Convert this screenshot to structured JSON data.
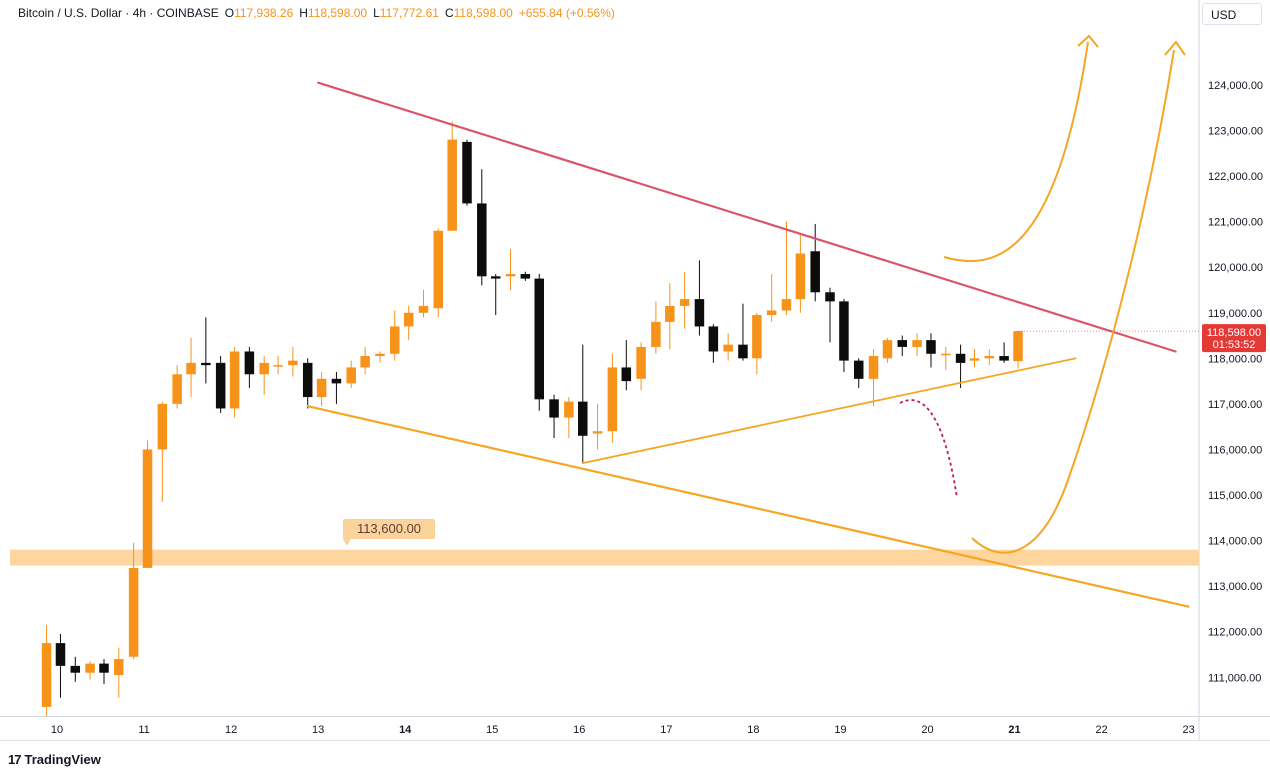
{
  "header": {
    "symbol": "Bitcoin / U.S. Dollar · 4h · COINBASE",
    "open_label": "O",
    "open": "117,938.26",
    "high_label": "H",
    "high": "118,598.00",
    "low_label": "L",
    "low": "117,772.61",
    "close_label": "C",
    "close": "118,598.00",
    "change": "+655.84 (+0.56%)"
  },
  "currency": "USD",
  "price_label": {
    "price": "118,598.00",
    "countdown": "01:53:52"
  },
  "zone_label": "113,600.00",
  "footer": {
    "brand": "TradingView",
    "logo": "17"
  },
  "colors": {
    "up": "#f7931a",
    "down": "#0c0c0c",
    "resistance": "#d9566a",
    "support": "#f5a623",
    "zone": "#fcd39a",
    "projection": "#f5a623",
    "dotted": "#c2185b",
    "price_tag": "#e53935"
  },
  "chart_data": {
    "type": "candlestick",
    "interval": "4h",
    "y_axis": {
      "ticks": [
        "111,000.00",
        "112,000.00",
        "113,000.00",
        "114,000.00",
        "115,000.00",
        "116,000.00",
        "117,000.00",
        "118,000.00",
        "119,000.00",
        "120,000.00",
        "121,000.00",
        "122,000.00",
        "123,000.00",
        "124,000.00"
      ],
      "ylim": [
        110150,
        125250
      ]
    },
    "x_axis": {
      "labels": [
        "10",
        "11",
        "12",
        "13",
        "14",
        "15",
        "16",
        "17",
        "18",
        "19",
        "20",
        "21",
        "22",
        "23"
      ],
      "bold": [
        "14",
        "21"
      ]
    },
    "candles": [
      {
        "t": 9.88,
        "o": 110350,
        "h": 112150,
        "l": 110150,
        "c": 111750
      },
      {
        "t": 10.04,
        "o": 111750,
        "h": 111950,
        "l": 110550,
        "c": 111250
      },
      {
        "t": 10.21,
        "o": 111250,
        "h": 111450,
        "l": 110900,
        "c": 111100
      },
      {
        "t": 10.38,
        "o": 111100,
        "h": 111350,
        "l": 110950,
        "c": 111300
      },
      {
        "t": 10.54,
        "o": 111300,
        "h": 111400,
        "l": 110850,
        "c": 111100
      },
      {
        "t": 10.71,
        "o": 111050,
        "h": 111650,
        "l": 110550,
        "c": 111400
      },
      {
        "t": 10.88,
        "o": 111450,
        "h": 113950,
        "l": 111400,
        "c": 113400
      },
      {
        "t": 11.04,
        "o": 113400,
        "h": 116200,
        "l": 113400,
        "c": 116000
      },
      {
        "t": 11.21,
        "o": 116000,
        "h": 117050,
        "l": 114850,
        "c": 117000
      },
      {
        "t": 11.38,
        "o": 117000,
        "h": 117850,
        "l": 116900,
        "c": 117650
      },
      {
        "t": 11.54,
        "o": 117650,
        "h": 118450,
        "l": 117150,
        "c": 117900
      },
      {
        "t": 11.71,
        "o": 117900,
        "h": 118900,
        "l": 117450,
        "c": 117850
      },
      {
        "t": 11.88,
        "o": 117900,
        "h": 118050,
        "l": 116800,
        "c": 116900
      },
      {
        "t": 12.04,
        "o": 116900,
        "h": 118250,
        "l": 116700,
        "c": 118150
      },
      {
        "t": 12.21,
        "o": 118150,
        "h": 118250,
        "l": 117350,
        "c": 117650
      },
      {
        "t": 12.38,
        "o": 117650,
        "h": 118050,
        "l": 117200,
        "c": 117900
      },
      {
        "t": 12.54,
        "o": 117850,
        "h": 118050,
        "l": 117650,
        "c": 117850
      },
      {
        "t": 12.71,
        "o": 117850,
        "h": 118250,
        "l": 117600,
        "c": 117950
      },
      {
        "t": 12.88,
        "o": 117900,
        "h": 118000,
        "l": 116900,
        "c": 117150
      },
      {
        "t": 13.04,
        "o": 117150,
        "h": 117700,
        "l": 116950,
        "c": 117550
      },
      {
        "t": 13.21,
        "o": 117550,
        "h": 117700,
        "l": 117000,
        "c": 117450
      },
      {
        "t": 13.38,
        "o": 117450,
        "h": 117950,
        "l": 117350,
        "c": 117800
      },
      {
        "t": 13.54,
        "o": 117800,
        "h": 118250,
        "l": 117650,
        "c": 118050
      },
      {
        "t": 13.71,
        "o": 118050,
        "h": 118150,
        "l": 117900,
        "c": 118100
      },
      {
        "t": 13.88,
        "o": 118100,
        "h": 119050,
        "l": 117950,
        "c": 118700
      },
      {
        "t": 14.04,
        "o": 118700,
        "h": 119150,
        "l": 118400,
        "c": 119000
      },
      {
        "t": 14.21,
        "o": 119000,
        "h": 119500,
        "l": 118900,
        "c": 119150
      },
      {
        "t": 14.38,
        "o": 119100,
        "h": 120850,
        "l": 118900,
        "c": 120800
      },
      {
        "t": 14.54,
        "o": 120800,
        "h": 123200,
        "l": 120800,
        "c": 122800
      },
      {
        "t": 14.71,
        "o": 122750,
        "h": 122800,
        "l": 121350,
        "c": 121400
      },
      {
        "t": 14.88,
        "o": 121400,
        "h": 122150,
        "l": 119600,
        "c": 119800
      },
      {
        "t": 15.04,
        "o": 119800,
        "h": 119850,
        "l": 118950,
        "c": 119750
      },
      {
        "t": 15.21,
        "o": 119800,
        "h": 120400,
        "l": 119500,
        "c": 119850
      },
      {
        "t": 15.38,
        "o": 119850,
        "h": 119900,
        "l": 119700,
        "c": 119750
      },
      {
        "t": 15.54,
        "o": 119750,
        "h": 119850,
        "l": 116850,
        "c": 117100
      },
      {
        "t": 15.71,
        "o": 117100,
        "h": 117200,
        "l": 116250,
        "c": 116700
      },
      {
        "t": 15.88,
        "o": 116700,
        "h": 117150,
        "l": 116250,
        "c": 117050
      },
      {
        "t": 16.04,
        "o": 117050,
        "h": 118300,
        "l": 115700,
        "c": 116300
      },
      {
        "t": 16.21,
        "o": 116350,
        "h": 117000,
        "l": 116000,
        "c": 116400
      },
      {
        "t": 16.38,
        "o": 116400,
        "h": 118100,
        "l": 116150,
        "c": 117800
      },
      {
        "t": 16.54,
        "o": 117800,
        "h": 118400,
        "l": 117300,
        "c": 117500
      },
      {
        "t": 16.71,
        "o": 117550,
        "h": 118350,
        "l": 117300,
        "c": 118250
      },
      {
        "t": 16.88,
        "o": 118250,
        "h": 119250,
        "l": 118100,
        "c": 118800
      },
      {
        "t": 17.04,
        "o": 118800,
        "h": 119650,
        "l": 118200,
        "c": 119150
      },
      {
        "t": 17.21,
        "o": 119150,
        "h": 119900,
        "l": 118650,
        "c": 119300
      },
      {
        "t": 17.38,
        "o": 119300,
        "h": 120150,
        "l": 118500,
        "c": 118700
      },
      {
        "t": 17.54,
        "o": 118700,
        "h": 118750,
        "l": 117900,
        "c": 118150
      },
      {
        "t": 17.71,
        "o": 118150,
        "h": 118550,
        "l": 117950,
        "c": 118300
      },
      {
        "t": 17.88,
        "o": 118300,
        "h": 119200,
        "l": 117950,
        "c": 118000
      },
      {
        "t": 18.04,
        "o": 118000,
        "h": 119000,
        "l": 117650,
        "c": 118950
      },
      {
        "t": 18.21,
        "o": 118950,
        "h": 119850,
        "l": 118800,
        "c": 119050
      },
      {
        "t": 18.38,
        "o": 119050,
        "h": 121000,
        "l": 118950,
        "c": 119300
      },
      {
        "t": 18.54,
        "o": 119300,
        "h": 120750,
        "l": 119000,
        "c": 120300
      },
      {
        "t": 18.71,
        "o": 120350,
        "h": 120950,
        "l": 119250,
        "c": 119450
      },
      {
        "t": 18.88,
        "o": 119450,
        "h": 119550,
        "l": 118350,
        "c": 119250
      },
      {
        "t": 19.04,
        "o": 119250,
        "h": 119300,
        "l": 117700,
        "c": 117950
      },
      {
        "t": 19.21,
        "o": 117950,
        "h": 118000,
        "l": 117350,
        "c": 117550
      },
      {
        "t": 19.38,
        "o": 117550,
        "h": 118200,
        "l": 116950,
        "c": 118050
      },
      {
        "t": 19.54,
        "o": 118000,
        "h": 118450,
        "l": 117900,
        "c": 118400
      },
      {
        "t": 19.71,
        "o": 118400,
        "h": 118500,
        "l": 118050,
        "c": 118250
      },
      {
        "t": 19.88,
        "o": 118250,
        "h": 118550,
        "l": 118050,
        "c": 118400
      },
      {
        "t": 20.04,
        "o": 118400,
        "h": 118550,
        "l": 117800,
        "c": 118100
      },
      {
        "t": 20.21,
        "o": 118100,
        "h": 118250,
        "l": 117750,
        "c": 118100
      },
      {
        "t": 20.38,
        "o": 118100,
        "h": 118300,
        "l": 117350,
        "c": 117900
      },
      {
        "t": 20.54,
        "o": 117950,
        "h": 118200,
        "l": 117800,
        "c": 118000
      },
      {
        "t": 20.71,
        "o": 118000,
        "h": 118200,
        "l": 117850,
        "c": 118050
      },
      {
        "t": 20.88,
        "o": 118050,
        "h": 118350,
        "l": 117900,
        "c": 117950
      },
      {
        "t": 21.04,
        "o": 117938.26,
        "h": 118598,
        "l": 117772.61,
        "c": 118598
      }
    ],
    "drawings": {
      "resistance_line": [
        [
          13.0,
          124050
        ],
        [
          22.85,
          118150
        ]
      ],
      "lower_channel_line": [
        [
          12.88,
          116950
        ],
        [
          23.0,
          112550
        ]
      ],
      "rising_support_line": [
        [
          16.04,
          115700
        ],
        [
          21.7,
          118000
        ]
      ],
      "support_zone": [
        113450,
        113800
      ]
    }
  }
}
